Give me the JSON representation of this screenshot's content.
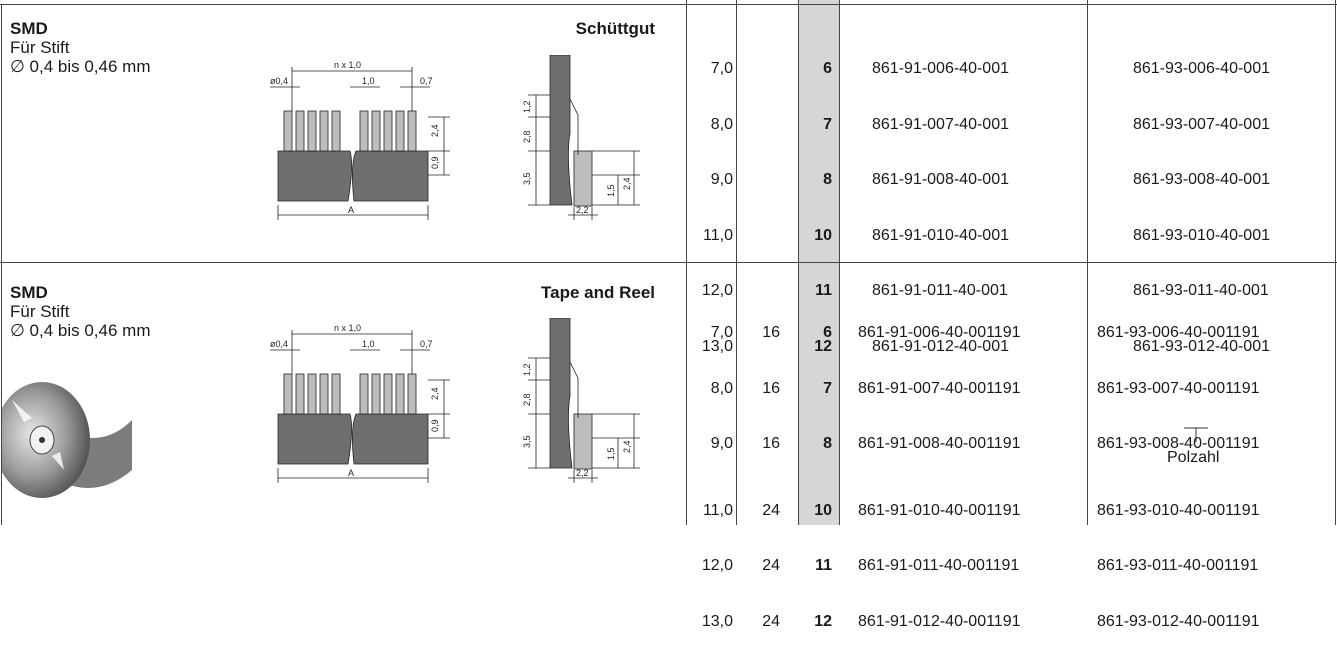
{
  "sections": [
    {
      "title": "SMD",
      "subtitle1": "Für Stift",
      "subtitle2": "∅ 0,4 bis 0,46 mm",
      "packaging": "Schüttgut",
      "lengths": [
        "7,0",
        "8,0",
        "9,0",
        "11,0",
        "12,0",
        "13,0"
      ],
      "qty": [
        "",
        "",
        "",
        "",
        "",
        ""
      ],
      "poles": [
        "6",
        "7",
        "8",
        "10",
        "11",
        "12"
      ],
      "part_91": [
        "861-91-006-40-001",
        "861-91-007-40-001",
        "861-91-008-40-001",
        "861-91-010-40-001",
        "861-91-011-40-001",
        "861-91-012-40-001"
      ],
      "part_93": [
        "861-93-006-40-001",
        "861-93-007-40-001",
        "861-93-008-40-001",
        "861-93-010-40-001",
        "861-93-011-40-001",
        "861-93-012-40-001"
      ]
    },
    {
      "title": "SMD",
      "subtitle1": "Für Stift",
      "subtitle2": "∅ 0,4 bis 0,46 mm",
      "packaging": "Tape and Reel",
      "lengths": [
        "7,0",
        "8,0",
        "9,0",
        "11,0",
        "12,0",
        "13,0"
      ],
      "qty": [
        "16",
        "16",
        "16",
        "24",
        "24",
        "24"
      ],
      "poles": [
        "6",
        "7",
        "8",
        "10",
        "11",
        "12"
      ],
      "part_91": [
        "861-91-006-40-001191",
        "861-91-007-40-001191",
        "861-91-008-40-001191",
        "861-91-010-40-001191",
        "861-91-011-40-001191",
        "861-91-012-40-001191"
      ],
      "part_93": [
        "861-93-006-40-001191",
        "861-93-007-40-001191",
        "861-93-008-40-001191",
        "861-93-010-40-001191",
        "861-93-011-40-001191",
        "861-93-012-40-001191"
      ],
      "polzahl_label": "Polzahl"
    }
  ],
  "diagram_labels": {
    "pitch_total": "n x 1,0",
    "pin_dia": "ø0,4",
    "pitch": "1,0",
    "gap": "0,7",
    "height": "2,4",
    "base": "0,9",
    "length": "A",
    "side_top": "1,2",
    "side_mid": "2,8",
    "side_low": "3,5",
    "side_h1": "1,5",
    "side_h2": "2,4",
    "side_w": "2,2"
  }
}
